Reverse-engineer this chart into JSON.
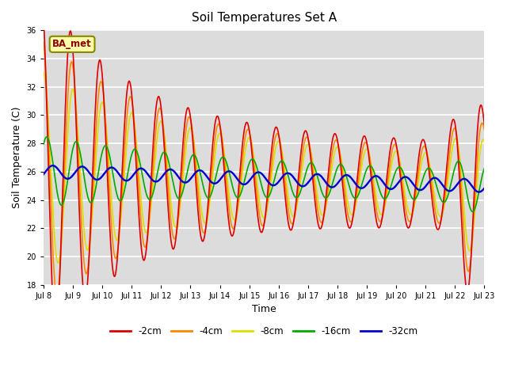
{
  "title": "Soil Temperatures Set A",
  "xlabel": "Time",
  "ylabel": "Soil Temperature (C)",
  "ylim": [
    18,
    36
  ],
  "annotation": "BA_met",
  "legend_labels": [
    "-2cm",
    "-4cm",
    "-8cm",
    "-16cm",
    "-32cm"
  ],
  "legend_colors": [
    "#dd0000",
    "#ff8800",
    "#dddd00",
    "#00aa00",
    "#0000cc"
  ],
  "xtick_labels": [
    "Jul 8",
    "Jul 9",
    "Jul 10",
    "Jul 11",
    "Jul 12",
    "Jul 13",
    "Jul 14",
    "Jul 15",
    "Jul 16",
    "Jul 17",
    "Jul 18",
    "Jul 19",
    "Jul 20",
    "Jul 21",
    "Jul 22",
    "Jul 23"
  ],
  "fig_bg": "#ffffff",
  "plot_bg": "#dcdcdc"
}
